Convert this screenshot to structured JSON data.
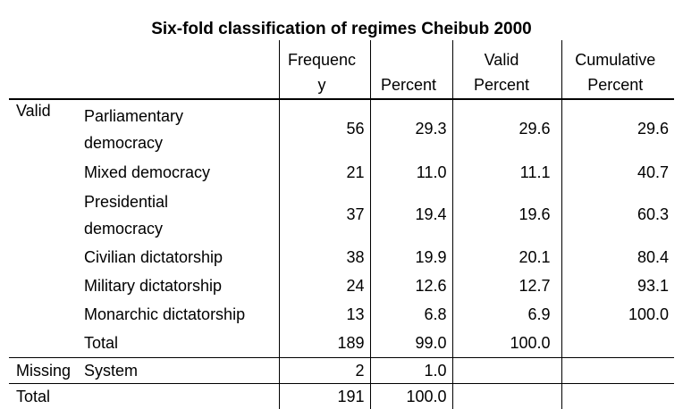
{
  "title": "Six-fold classification of regimes Cheibub 2000",
  "header": {
    "frequency": "Frequency",
    "percent": "Percent",
    "valid_percent": "Valid Percent",
    "cumulative_percent": "Cumulative Percent",
    "frequency_line1": "Frequenc",
    "frequency_line2": "y",
    "valid_percent_line1": "Valid",
    "valid_percent_line2": "Percent",
    "cumulative_percent_line1": "Cumulative",
    "cumulative_percent_line2": "Percent"
  },
  "groups": {
    "valid": "Valid",
    "missing": "Missing",
    "total": "Total"
  },
  "rows": [
    {
      "label_line1": "Parliamentary",
      "label_line2": "democracy",
      "frequency": "56",
      "percent": "29.3",
      "valid_percent": "29.6",
      "cumulative_percent": "29.6"
    },
    {
      "label": "Mixed democracy",
      "frequency": "21",
      "percent": "11.0",
      "valid_percent": "11.1",
      "cumulative_percent": "40.7"
    },
    {
      "label_line1": "Presidential",
      "label_line2": "democracy",
      "frequency": "37",
      "percent": "19.4",
      "valid_percent": "19.6",
      "cumulative_percent": "60.3"
    },
    {
      "label": "Civilian dictatorship",
      "frequency": "38",
      "percent": "19.9",
      "valid_percent": "20.1",
      "cumulative_percent": "80.4"
    },
    {
      "label": "Military dictatorship",
      "frequency": "24",
      "percent": "12.6",
      "valid_percent": "12.7",
      "cumulative_percent": "93.1"
    },
    {
      "label": "Monarchic dictatorship",
      "frequency": "13",
      "percent": "6.8",
      "valid_percent": "6.9",
      "cumulative_percent": "100.0"
    },
    {
      "label": "Total",
      "frequency": "189",
      "percent": "99.0",
      "valid_percent": "100.0",
      "cumulative_percent": ""
    }
  ],
  "missing_row": {
    "label": "System",
    "frequency": "2",
    "percent": "1.0"
  },
  "total_row": {
    "frequency": "191",
    "percent": "100.0"
  }
}
